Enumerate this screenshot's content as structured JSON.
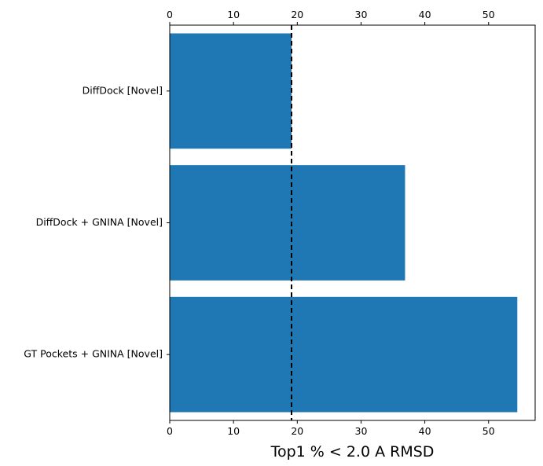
{
  "chart_data": {
    "type": "bar",
    "orientation": "horizontal",
    "categories": [
      "DiffDock [Novel]",
      "DiffDock + GNINA [Novel]",
      "GT Pockets + GNINA [Novel]"
    ],
    "values": [
      19.1,
      36.9,
      54.5
    ],
    "title": "",
    "xlabel": "Top1 % < 2.0 A RMSD",
    "ylabel": "",
    "xlim": [
      0,
      57.3
    ],
    "xticks": [
      0,
      10,
      20,
      30,
      40,
      50
    ],
    "xtick_labels": [
      "0",
      "10",
      "20",
      "30",
      "40",
      "50"
    ],
    "x_axis_ticks_top_and_bottom": true,
    "reference_line": {
      "x": 19.1,
      "style": "dashed",
      "color": "#000000"
    },
    "bar_color": "#1f77b4",
    "grid": false,
    "legend": "none"
  }
}
